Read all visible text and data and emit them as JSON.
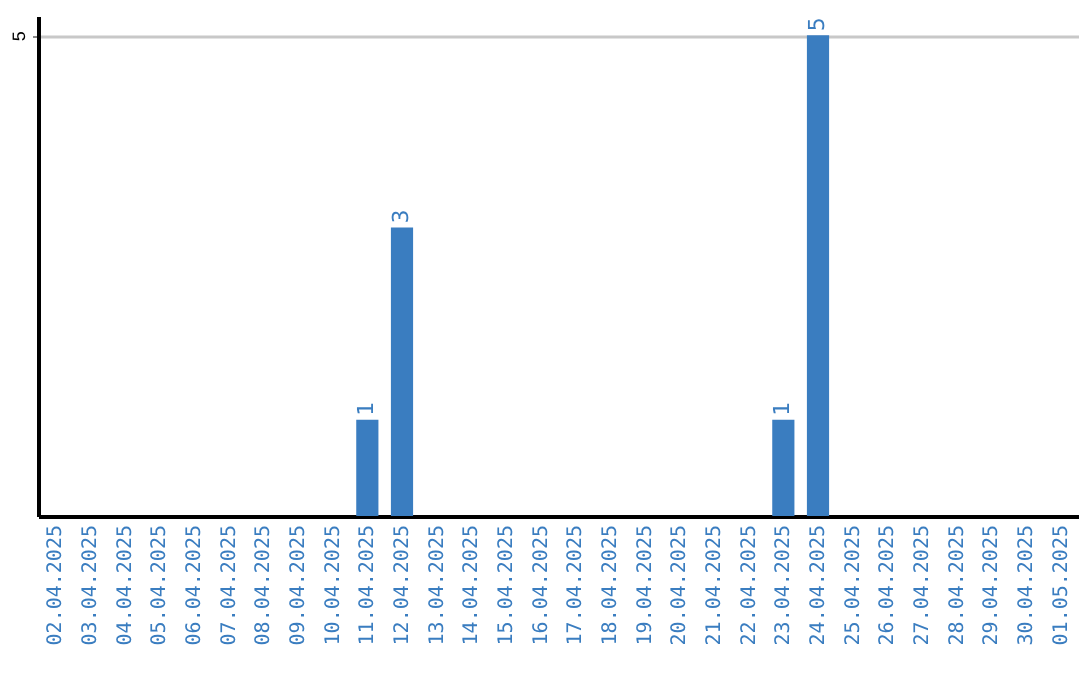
{
  "chart_data": {
    "type": "bar",
    "categories": [
      "02.04.2025",
      "03.04.2025",
      "04.04.2025",
      "05.04.2025",
      "06.04.2025",
      "07.04.2025",
      "08.04.2025",
      "09.04.2025",
      "10.04.2025",
      "11.04.2025",
      "12.04.2025",
      "13.04.2025",
      "14.04.2025",
      "15.04.2025",
      "16.04.2025",
      "17.04.2025",
      "18.04.2025",
      "19.04.2025",
      "20.04.2025",
      "21.04.2025",
      "22.04.2025",
      "23.04.2025",
      "24.04.2025",
      "25.04.2025",
      "26.04.2025",
      "27.04.2025",
      "28.04.2025",
      "29.04.2025",
      "30.04.2025",
      "01.05.2025"
    ],
    "values": [
      null,
      null,
      null,
      null,
      null,
      null,
      null,
      null,
      null,
      1,
      3,
      null,
      null,
      null,
      null,
      null,
      null,
      null,
      null,
      null,
      null,
      1,
      5,
      null,
      null,
      null,
      null,
      null,
      null,
      null
    ],
    "color": "#3a7dc0",
    "ylim": [
      0,
      5.2
    ],
    "yticks": [
      5
    ],
    "grid": "y",
    "data_labels": true
  }
}
